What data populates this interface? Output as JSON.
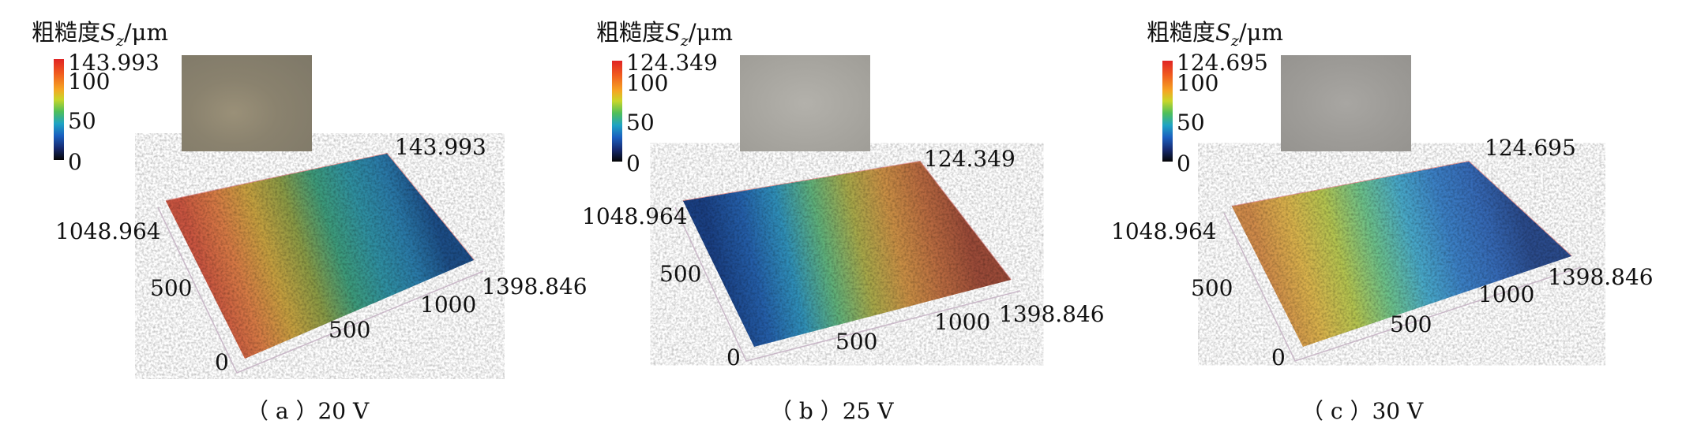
{
  "chart_data": [
    {
      "type": "heatmap",
      "subtype": "3d-surface",
      "caption": "（ a ）20 V",
      "legend_title": "粗糙度",
      "legend_symbol": "S",
      "legend_subscript": "z",
      "legend_unit": "/μm",
      "colorbar": {
        "max_label": "143.993",
        "ticks": [
          "100",
          "50",
          "0"
        ],
        "range": [
          0,
          143.993
        ],
        "colormap": "jet"
      },
      "z_max_label": "143.993",
      "y_axis": {
        "max_label": "1048.964",
        "ticks": [
          "500"
        ],
        "zero": "0"
      },
      "x_axis": {
        "max_label": "1398.846",
        "ticks": [
          "500",
          "1000"
        ]
      },
      "gradient": [
        "#c85440",
        "#d67a45",
        "#c6a040",
        "#8a9a45",
        "#3d9a7a",
        "#2f8fa0",
        "#2a7aa8",
        "#1c4d86"
      ]
    },
    {
      "type": "heatmap",
      "subtype": "3d-surface",
      "caption": "（ b ）25 V",
      "legend_title": "粗糙度",
      "legend_symbol": "S",
      "legend_subscript": "z",
      "legend_unit": "/μm",
      "colorbar": {
        "max_label": "124.349",
        "ticks": [
          "100",
          "50",
          "0"
        ],
        "range": [
          0,
          124.349
        ],
        "colormap": "jet"
      },
      "z_max_label": "124.349",
      "y_axis": {
        "max_label": "1048.964",
        "ticks": [
          "500"
        ],
        "zero": "0"
      },
      "x_axis": {
        "max_label": "1398.846",
        "ticks": [
          "500",
          "1000"
        ]
      },
      "gradient": [
        "#1a3f82",
        "#245ea8",
        "#2f8fb8",
        "#5fb07a",
        "#a7a84a",
        "#c98f45",
        "#b86a40",
        "#9a4a38"
      ]
    },
    {
      "type": "heatmap",
      "subtype": "3d-surface",
      "caption": "（ c ）30 V",
      "legend_title": "粗糙度",
      "legend_symbol": "S",
      "legend_subscript": "z",
      "legend_unit": "/μm",
      "colorbar": {
        "max_label": "124.695",
        "ticks": [
          "100",
          "50",
          "0"
        ],
        "range": [
          0,
          124.695
        ],
        "colormap": "jet"
      },
      "z_max_label": "124.695",
      "y_axis": {
        "max_label": "1048.964",
        "ticks": [
          "500"
        ],
        "zero": "0"
      },
      "x_axis": {
        "max_label": "1398.846",
        "ticks": [
          "500",
          "1000"
        ]
      },
      "gradient": [
        "#cf8a4a",
        "#d9b24c",
        "#b4c450",
        "#6cc08a",
        "#48a8c8",
        "#3b7fc4",
        "#3568b4",
        "#2a4a8a"
      ]
    }
  ]
}
